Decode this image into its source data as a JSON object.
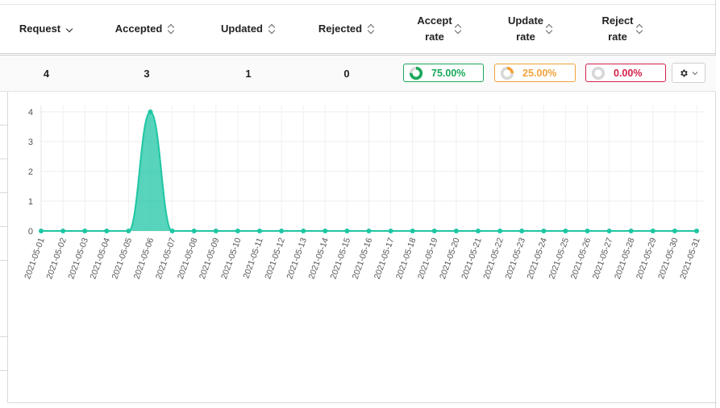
{
  "header": {
    "request": "Request",
    "accepted": "Accepted",
    "updated": "Updated",
    "rejected": "Rejected",
    "accept_rate_1": "Accept",
    "accept_rate_2": "rate",
    "update_rate_1": "Update",
    "update_rate_2": "rate",
    "reject_rate_1": "Reject",
    "reject_rate_2": "rate"
  },
  "values": {
    "request": "4",
    "accepted": "3",
    "updated": "1",
    "rejected": "0",
    "accept_rate": "75.00%",
    "update_rate": "25.00%",
    "reject_rate": "0.00%"
  },
  "rates": {
    "accept_fraction": 0.75,
    "update_fraction": 0.25,
    "reject_fraction": 0.0
  },
  "colors": {
    "accent": "#1fc6a4",
    "accept": "#1aa85a",
    "update": "#f2a23a",
    "reject": "#d6204a"
  },
  "icons": {
    "settings": "gear-icon",
    "dropdown": "chevron-down-icon"
  },
  "chart_data": {
    "type": "area",
    "x": [
      "2021-05-01",
      "2021-05-02",
      "2021-05-03",
      "2021-05-04",
      "2021-05-05",
      "2021-05-06",
      "2021-05-07",
      "2021-05-08",
      "2021-05-09",
      "2021-05-10",
      "2021-05-11",
      "2021-05-12",
      "2021-05-13",
      "2021-05-14",
      "2021-05-15",
      "2021-05-16",
      "2021-05-17",
      "2021-05-18",
      "2021-05-19",
      "2021-05-20",
      "2021-05-21",
      "2021-05-22",
      "2021-05-23",
      "2021-05-24",
      "2021-05-25",
      "2021-05-26",
      "2021-05-27",
      "2021-05-28",
      "2021-05-29",
      "2021-05-30",
      "2021-05-31"
    ],
    "values": [
      0,
      0,
      0,
      0,
      0,
      4,
      0,
      0,
      0,
      0,
      0,
      0,
      0,
      0,
      0,
      0,
      0,
      0,
      0,
      0,
      0,
      0,
      0,
      0,
      0,
      0,
      0,
      0,
      0,
      0,
      0
    ],
    "yticks": [
      0,
      1,
      2,
      3,
      4
    ],
    "ylim": [
      0,
      4
    ],
    "grid": true,
    "title": "",
    "xlabel": "",
    "ylabel": ""
  }
}
